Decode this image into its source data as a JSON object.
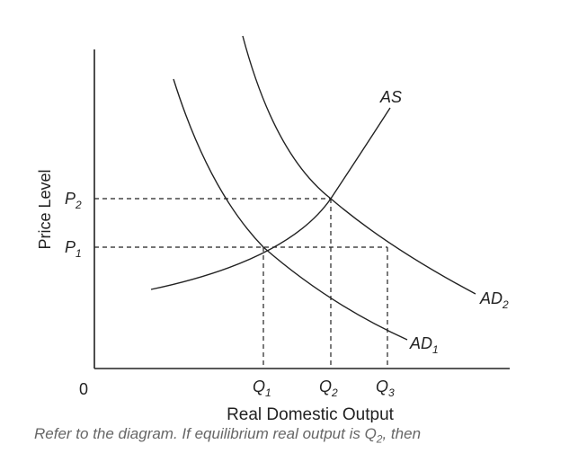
{
  "diagram": {
    "y_axis_label": "Price Level",
    "x_axis_label": "Real Domestic Output",
    "origin_label": "0",
    "curves": {
      "as": "AS",
      "ad1": {
        "base": "AD",
        "sub": "1"
      },
      "ad2": {
        "base": "AD",
        "sub": "2"
      }
    },
    "price_ticks": [
      {
        "base": "P",
        "sub": "2"
      },
      {
        "base": "P",
        "sub": "1"
      }
    ],
    "quantity_ticks": [
      {
        "base": "Q",
        "sub": "1"
      },
      {
        "base": "Q",
        "sub": "2"
      },
      {
        "base": "Q",
        "sub": "3"
      }
    ]
  },
  "caption": {
    "before": "Refer to the diagram. If equilibrium real output is Q",
    "sub": "2",
    "after": ", then"
  }
}
